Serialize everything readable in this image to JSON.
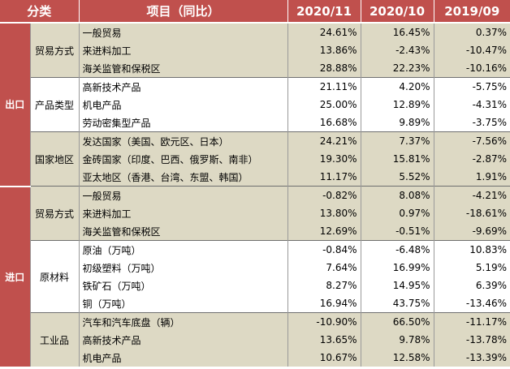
{
  "headers": {
    "category": "分类",
    "item": "项目（同比）",
    "col1": "2020/11",
    "col2": "2020/10",
    "col3": "2019/09"
  },
  "groups": [
    {
      "label": "出口",
      "sections": [
        {
          "label": "贸易方式",
          "rows": [
            {
              "item": "一般贸易",
              "v1": "24.61%",
              "v2": "16.45%",
              "v3": "0.37%"
            },
            {
              "item": "来进料加工",
              "v1": "13.86%",
              "v2": "-2.43%",
              "v3": "-10.47%"
            },
            {
              "item": "海关监管和保税区",
              "v1": "28.88%",
              "v2": "22.23%",
              "v3": "-10.16%"
            }
          ]
        },
        {
          "label": "产品类型",
          "rows": [
            {
              "item": "高新技术产品",
              "v1": "21.11%",
              "v2": "4.20%",
              "v3": "-5.75%"
            },
            {
              "item": "机电产品",
              "v1": "25.00%",
              "v2": "12.89%",
              "v3": "-4.31%"
            },
            {
              "item": "劳动密集型产品",
              "v1": "16.68%",
              "v2": "9.89%",
              "v3": "-3.75%"
            }
          ]
        },
        {
          "label": "国家地区",
          "rows": [
            {
              "item": "发达国家（美国、欧元区、日本）",
              "v1": "24.21%",
              "v2": "7.37%",
              "v3": "-7.56%"
            },
            {
              "item": "金砖国家（印度、巴西、俄罗斯、南非）",
              "v1": "19.30%",
              "v2": "15.81%",
              "v3": "-2.87%"
            },
            {
              "item": "亚太地区（香港、台湾、东盟、韩国）",
              "v1": "11.17%",
              "v2": "5.52%",
              "v3": "1.91%"
            }
          ]
        }
      ]
    },
    {
      "label": "进口",
      "sections": [
        {
          "label": "贸易方式",
          "rows": [
            {
              "item": "一般贸易",
              "v1": "-0.82%",
              "v2": "8.08%",
              "v3": "-4.21%"
            },
            {
              "item": "来进料加工",
              "v1": "13.80%",
              "v2": "0.97%",
              "v3": "-18.61%"
            },
            {
              "item": "海关监管和保税区",
              "v1": "12.69%",
              "v2": "-0.51%",
              "v3": "-9.69%"
            }
          ]
        },
        {
          "label": "原材料",
          "rows": [
            {
              "item": "原油（万吨）",
              "v1": "-0.84%",
              "v2": "-6.48%",
              "v3": "10.83%"
            },
            {
              "item": "初级塑料（万吨）",
              "v1": "7.64%",
              "v2": "16.99%",
              "v3": "5.19%"
            },
            {
              "item": "铁矿石（万吨）",
              "v1": "8.27%",
              "v2": "14.95%",
              "v3": "6.39%"
            },
            {
              "item": "铜（万吨）",
              "v1": "16.94%",
              "v2": "43.75%",
              "v3": "-13.46%"
            }
          ]
        },
        {
          "label": "工业品",
          "rows": [
            {
              "item": "汽车和汽车底盘（辆）",
              "v1": "-10.90%",
              "v2": "66.50%",
              "v3": "-11.17%"
            },
            {
              "item": "高新技术产品",
              "v1": "13.65%",
              "v2": "9.78%",
              "v3": "-13.78%"
            },
            {
              "item": "机电产品",
              "v1": "10.67%",
              "v2": "12.58%",
              "v3": "-13.39%"
            }
          ]
        }
      ]
    }
  ],
  "colors": {
    "header_bg": "#c0504d",
    "band_tan": "#ddd9c4",
    "band_white": "#ffffff"
  }
}
